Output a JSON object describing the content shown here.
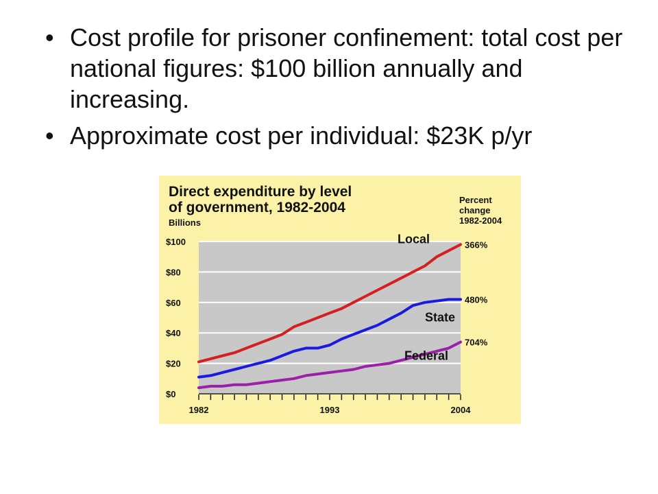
{
  "slide": {
    "bullets": [
      "Cost profile for prisoner confinement: total cost per national figures: $100 billion annually and increasing.",
      "Approximate cost per individual: $23K p/yr"
    ]
  },
  "chart_data": {
    "type": "line",
    "title_line1": "Direct expenditure by level",
    "title_line2": "of government, 1982-2004",
    "unit_label": "Billions",
    "change_header": [
      "Percent",
      "change",
      "1982-2004"
    ],
    "xlim": [
      1982,
      2004
    ],
    "x_tick_labels": [
      "1982",
      "1993",
      "2004"
    ],
    "ylim": [
      0,
      100
    ],
    "y_ticks": [
      0,
      20,
      40,
      60,
      80,
      100
    ],
    "y_tick_labels": [
      "$0",
      "$20",
      "$40",
      "$60",
      "$80",
      "$100"
    ],
    "grid": true,
    "background_color": "#fbf2a8",
    "plot_color": "#c8c8c8",
    "x": [
      1982,
      1983,
      1984,
      1985,
      1986,
      1987,
      1988,
      1989,
      1990,
      1991,
      1992,
      1993,
      1994,
      1995,
      1996,
      1997,
      1998,
      1999,
      2000,
      2001,
      2002,
      2003,
      2004
    ],
    "series": [
      {
        "name": "Local",
        "color": "#d42020",
        "percent_change": "366%",
        "values": [
          21,
          23,
          25,
          27,
          30,
          33,
          36,
          39,
          44,
          47,
          50,
          53,
          56,
          60,
          64,
          68,
          72,
          76,
          80,
          84,
          90,
          94,
          98
        ]
      },
      {
        "name": "State",
        "color": "#1a1ae0",
        "percent_change": "480%",
        "values": [
          11,
          12,
          14,
          16,
          18,
          20,
          22,
          25,
          28,
          30,
          30,
          32,
          36,
          39,
          42,
          45,
          49,
          53,
          58,
          60,
          61,
          62,
          62
        ]
      },
      {
        "name": "Federal",
        "color": "#9b1fa8",
        "percent_change": "704%",
        "values": [
          4,
          5,
          5,
          6,
          6,
          7,
          8,
          9,
          10,
          12,
          13,
          14,
          15,
          16,
          18,
          19,
          20,
          22,
          24,
          26,
          28,
          30,
          34
        ]
      }
    ]
  }
}
